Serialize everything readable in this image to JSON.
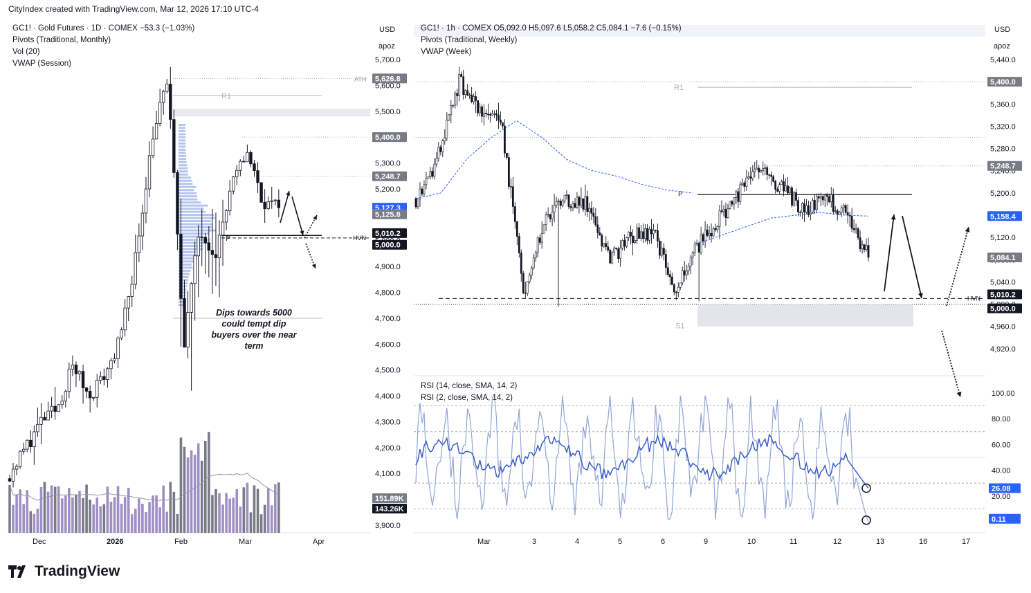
{
  "caption": "CityIndex created with TradingView.com, Mar 12, 2026 17:10 UTC-4",
  "brand": "TradingView",
  "colors": {
    "candle": "#131722",
    "pivot_line": "#b2b5be",
    "vwap": "#2962ff",
    "volume_up": "#9e8fc4",
    "volume_down": "#787b86",
    "volume_profile": "#5b7fd6",
    "rsi14": "#3b5fc7",
    "rsi2": "#8fa4d8",
    "label_dark": "#131722",
    "label_blue": "#2962ff",
    "label_gray": "#787b86"
  },
  "icons": [
    "tradingview-logo-icon"
  ],
  "left": {
    "legend": [
      "GC1! · Gold Futures · 1D · COMEX  −53.3 (−1.03%)",
      "Pivots (Traditional, Monthly)",
      "Vol (20)",
      "VWAP (Session)"
    ],
    "currency": "USD",
    "scale_mode": "apoz",
    "y_ticks": [
      "5,700.0",
      "5,600.0",
      "5,500.0",
      "5,400.0",
      "5,300.0",
      "5,200.0",
      "5,100.0",
      "5,000.0",
      "4,900.0",
      "4,800.0",
      "4,700.0",
      "4,600.0",
      "4,500.0",
      "4,400.0",
      "4,300.0",
      "4,200.0",
      "4,100.0",
      "4,000.0",
      "3,900.0"
    ],
    "x_ticks": [
      "Dec",
      "2026",
      "Feb",
      "Mar",
      "Apr"
    ],
    "price_labels": [
      {
        "text": "5,626.8",
        "value": 5626.8,
        "style": "gray"
      },
      {
        "text": "5,400.0",
        "value": 5400,
        "style": "gray"
      },
      {
        "text": "5,248.7",
        "value": 5248.7,
        "style": "gray"
      },
      {
        "text": "5,127.3",
        "value": 5127.3,
        "style": "blue"
      },
      {
        "text": "5,125.8",
        "value": 5125.8,
        "style": "gray"
      },
      {
        "text": "5,010.2",
        "value": 5010.2,
        "style": "dark"
      },
      {
        "text": "5,000.0",
        "value": 5000,
        "style": "dark"
      },
      {
        "text": "151.89K",
        "value": 151.89,
        "style": "gray"
      },
      {
        "text": "143.26K",
        "value": 143.26,
        "style": "dark"
      }
    ],
    "line_labels": {
      "ath": "ATH",
      "r1": "R1",
      "p": "P",
      "hvn": "HVN"
    },
    "annotation": [
      "Dips towards 5000",
      "could tempt dip",
      "buyers over the near",
      "term"
    ]
  },
  "right": {
    "legend": [
      "GC1! · 1h · COMEX  O5,092.0  H5,097.6  L5,058.2  C5,084.1  −7.6 (−0.15%)",
      "Pivots (Traditional, Weekly)",
      "VWAP (Week)"
    ],
    "currency": "USD",
    "scale_mode": "apoz",
    "y_ticks": [
      "5,440.0",
      "5,400.0",
      "5,360.0",
      "5,320.0",
      "5,280.0",
      "5,240.0",
      "5,200.0",
      "5,160.0",
      "5,120.0",
      "5,080.0",
      "5,040.0",
      "5,000.0",
      "4,960.0",
      "4,920.0"
    ],
    "x_ticks": [
      "Mar",
      "3",
      "4",
      "5",
      "6",
      "9",
      "10",
      "11",
      "12",
      "13",
      "16",
      "17"
    ],
    "price_labels": [
      {
        "text": "5,400.0",
        "value": 5400,
        "style": "gray"
      },
      {
        "text": "5,248.7",
        "value": 5248.7,
        "style": "gray"
      },
      {
        "text": "5,158.4",
        "value": 5158.4,
        "style": "blue"
      },
      {
        "text": "5,084.1",
        "value": 5084.1,
        "style": "gray"
      },
      {
        "text": "5,010.2",
        "value": 5010.2,
        "style": "dark"
      },
      {
        "text": "5,000.0",
        "value": 5000,
        "style": "dark"
      }
    ],
    "line_labels": {
      "r1": "R1",
      "p": "P",
      "s1": "S1",
      "hvn": "HVN"
    },
    "rsi": {
      "legend": [
        "RSI (14, close, SMA, 14, 2)",
        "RSI (2, close, SMA, 14, 2)"
      ],
      "y_ticks": [
        "100.00",
        "80.00",
        "60.00",
        "40.00",
        "20.00"
      ],
      "labels": [
        {
          "text": "26.08",
          "value": 26.08
        },
        {
          "text": "0.11",
          "value": 0.11
        }
      ]
    }
  },
  "chart_data": [
    {
      "type": "candlestick",
      "title": "GC1! · Gold Futures · 1D · COMEX",
      "ylim": [
        3900,
        5700
      ],
      "key_levels": {
        "ATH": 5626.8,
        "R1_monthly": 5560,
        "P_monthly": 5020,
        "HVN": 5010.2,
        "round_level": 5000
      },
      "approx_closes": [
        {
          "x": "Nov 24",
          "close": 4100
        },
        {
          "x": "Dec 1",
          "close": 4200
        },
        {
          "x": "Dec 8",
          "close": 4300
        },
        {
          "x": "Dec 15",
          "close": 4350
        },
        {
          "x": "Dec 22",
          "close": 4520
        },
        {
          "x": "Dec 29",
          "close": 4400
        },
        {
          "x": "Jan 5",
          "close": 4480
        },
        {
          "x": "Jan 12",
          "close": 4620
        },
        {
          "x": "Jan 19",
          "close": 4950
        },
        {
          "x": "Jan 26",
          "close": 5400
        },
        {
          "x": "Jan 29",
          "close": 5626.8
        },
        {
          "x": "Feb 2",
          "close": 4600
        },
        {
          "x": "Feb 9",
          "close": 5050
        },
        {
          "x": "Feb 16",
          "close": 4950
        },
        {
          "x": "Feb 23",
          "close": 5200
        },
        {
          "x": "Mar 2",
          "close": 5350
        },
        {
          "x": "Mar 9",
          "close": 5150
        },
        {
          "x": "Mar 12",
          "close": 5127.3
        }
      ],
      "volume_ylim_k": [
        0,
        600
      ]
    },
    {
      "type": "candlestick",
      "title": "GC1! · 1h · COMEX",
      "ylim": [
        4880,
        5440
      ],
      "key_levels": {
        "R1_weekly": 5390,
        "ATH_ref": 5400,
        "prior_high": 5248.7,
        "P_weekly": 5197,
        "HVN": 5010.2,
        "round_level": 5000,
        "S1_weekly": 4960
      },
      "approx_closes": [
        {
          "x": "Mar 2 00:00",
          "close": 5190
        },
        {
          "x": "Mar 2 12:00",
          "close": 5260
        },
        {
          "x": "Mar 2 20:00",
          "close": 5400
        },
        {
          "x": "Mar 3 04:00",
          "close": 5350
        },
        {
          "x": "Mar 3 12:00",
          "close": 5320
        },
        {
          "x": "Mar 3 20:00",
          "close": 5020
        },
        {
          "x": "Mar 4 04:00",
          "close": 5150
        },
        {
          "x": "Mar 4 16:00",
          "close": 5190
        },
        {
          "x": "Mar 5 08:00",
          "close": 5180
        },
        {
          "x": "Mar 5 20:00",
          "close": 5080
        },
        {
          "x": "Mar 6 08:00",
          "close": 5120
        },
        {
          "x": "Mar 6 20:00",
          "close": 5130
        },
        {
          "x": "Mar 9 02:00",
          "close": 5030
        },
        {
          "x": "Mar 9 12:00",
          "close": 5100
        },
        {
          "x": "Mar 9 22:00",
          "close": 5150
        },
        {
          "x": "Mar 10 08:00",
          "close": 5200
        },
        {
          "x": "Mar 10 16:00",
          "close": 5240
        },
        {
          "x": "Mar 11 00:00",
          "close": 5210
        },
        {
          "x": "Mar 11 12:00",
          "close": 5170
        },
        {
          "x": "Mar 11 20:00",
          "close": 5190
        },
        {
          "x": "Mar 12 06:00",
          "close": 5160
        },
        {
          "x": "Mar 12 14:00",
          "close": 5084.1
        }
      ],
      "vwap_last": 5158.4,
      "projection_arrows": [
        "up to ~5200",
        "down to ~5010",
        "up to ~5160",
        "down below 5000"
      ],
      "rsi": {
        "rsi14_last": 26.08,
        "rsi2_last": 0.11,
        "ylim": [
          0,
          100
        ],
        "levels": [
          90,
          70,
          30,
          10
        ]
      }
    }
  ]
}
